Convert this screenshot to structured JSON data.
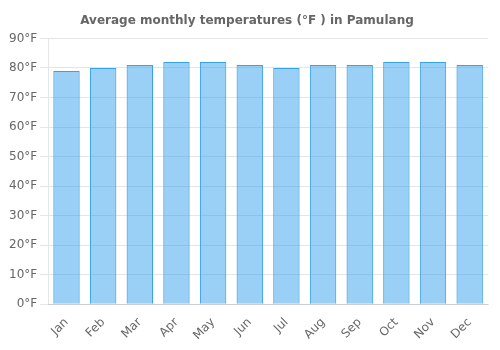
{
  "chart_data": {
    "type": "bar",
    "title": "Average monthly temperatures (°F ) in Pamulang",
    "categories": [
      "Jan",
      "Feb",
      "Mar",
      "Apr",
      "May",
      "Jun",
      "Jul",
      "Aug",
      "Sep",
      "Oct",
      "Nov",
      "Dec"
    ],
    "values": [
      79,
      80,
      81,
      82,
      82,
      81,
      80,
      81,
      81,
      82,
      82,
      81
    ],
    "ylim": [
      0,
      90
    ],
    "yticks": [
      {
        "value": 0,
        "label": "0°F"
      },
      {
        "value": 10,
        "label": "10°F"
      },
      {
        "value": 20,
        "label": "20°F"
      },
      {
        "value": 30,
        "label": "30°F"
      },
      {
        "value": 40,
        "label": "40°F"
      },
      {
        "value": 50,
        "label": "50°F"
      },
      {
        "value": 60,
        "label": "60°F"
      },
      {
        "value": 70,
        "label": "70°F"
      },
      {
        "value": 80,
        "label": "80°F"
      },
      {
        "value": 90,
        "label": "90°F"
      }
    ],
    "grid": true
  }
}
